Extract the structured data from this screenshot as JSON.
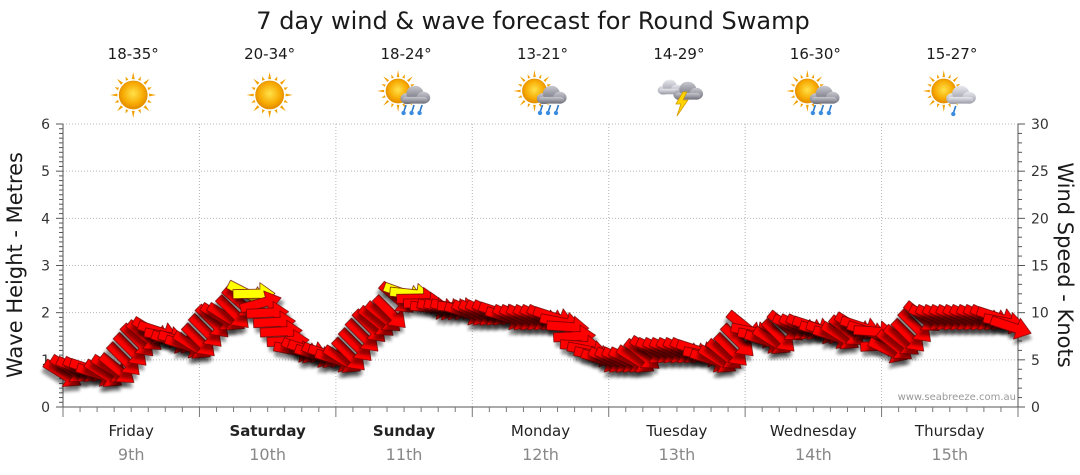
{
  "chart_data": {
    "type": "line",
    "title": "7 day wind & wave forecast for Round Swamp",
    "ylabel_left": "Wave Height - Metres",
    "ylabel_right": "Wind Speed - Knots",
    "ylim_left": [
      0,
      6
    ],
    "ylim_right": [
      0,
      30
    ],
    "yticks_left": [
      "0",
      "1",
      "2",
      "3",
      "4",
      "5",
      "6"
    ],
    "yticks_right": [
      "0",
      "5",
      "10",
      "15",
      "20",
      "25",
      "30"
    ],
    "grid": true,
    "credit": "www.seabreeze.com.au",
    "days": [
      {
        "day": "Friday",
        "date": "9th",
        "bold": false,
        "temp": "18-35°",
        "icon": "sunny-icon"
      },
      {
        "day": "Saturday",
        "date": "10th",
        "bold": true,
        "temp": "20-34°",
        "icon": "sunny-icon"
      },
      {
        "day": "Sunday",
        "date": "11th",
        "bold": true,
        "temp": "18-24°",
        "icon": "sun-rain-icon"
      },
      {
        "day": "Monday",
        "date": "12th",
        "bold": false,
        "temp": "13-21°",
        "icon": "sun-rain-icon"
      },
      {
        "day": "Tuesday",
        "date": "13th",
        "bold": false,
        "temp": "14-29°",
        "icon": "thunderstorm-icon"
      },
      {
        "day": "Wednesday",
        "date": "14th",
        "bold": false,
        "temp": "16-30°",
        "icon": "sun-rain-icon"
      },
      {
        "day": "Thursday",
        "date": "15th",
        "bold": false,
        "temp": "15-27°",
        "icon": "sun-showers-icon"
      }
    ],
    "series": [
      {
        "name": "Wind Speed",
        "x_days": [
          0.0,
          0.05,
          0.1,
          0.15,
          0.2,
          0.25,
          0.3,
          0.35,
          0.4,
          0.45,
          0.5,
          0.55,
          0.6,
          0.65,
          0.7,
          0.75,
          0.8,
          0.85,
          0.9,
          0.95,
          1.0,
          1.05,
          1.1,
          1.15,
          1.2,
          1.25,
          1.3,
          1.35,
          1.4,
          1.45,
          1.5,
          1.55,
          1.6,
          1.65,
          1.7,
          1.75,
          1.8,
          1.85,
          1.9,
          1.95,
          2.0,
          2.05,
          2.1,
          2.15,
          2.2,
          2.25,
          2.3,
          2.35,
          2.4,
          2.45,
          2.5,
          2.55,
          2.6,
          2.65,
          2.7,
          2.75,
          2.8,
          2.85,
          2.9,
          2.95,
          3.0,
          3.05,
          3.1,
          3.15,
          3.2,
          3.25,
          3.3,
          3.35,
          3.4,
          3.45,
          3.5,
          3.55,
          3.6,
          3.65,
          3.7,
          3.75,
          3.8,
          3.85,
          3.9,
          3.95,
          4.0,
          4.05,
          4.1,
          4.15,
          4.2,
          4.25,
          4.3,
          4.35,
          4.4,
          4.45,
          4.5,
          4.55,
          4.6,
          4.65,
          4.7,
          4.75,
          4.8,
          4.85,
          4.9,
          4.95,
          5.0,
          5.05,
          5.1,
          5.15,
          5.2,
          5.25,
          5.3,
          5.35,
          5.4,
          5.45,
          5.5,
          5.55,
          5.6,
          5.65,
          5.7,
          5.75,
          5.8,
          5.85,
          5.9,
          5.95,
          6.0,
          6.05,
          6.1,
          6.15,
          6.2,
          6.25,
          6.3,
          6.35,
          6.4,
          6.45,
          6.5,
          6.55,
          6.6,
          6.65,
          6.7,
          6.75,
          6.8,
          6.85,
          6.9,
          6.95
        ],
        "values": [
          3.5,
          4,
          4,
          4,
          4,
          3.5,
          3.5,
          4,
          4,
          5,
          6,
          7,
          7.5,
          8,
          8,
          7.5,
          7,
          7,
          6.5,
          6.5,
          7,
          8,
          9,
          9.5,
          9.5,
          10,
          11,
          12,
          12,
          11,
          10,
          9,
          8,
          7,
          6,
          6,
          6,
          5.5,
          5.5,
          5.5,
          5,
          5,
          5.5,
          6.5,
          7.5,
          8.5,
          9,
          9.5,
          10,
          11.5,
          12,
          12,
          11.5,
          11,
          10.5,
          10.5,
          10.5,
          10.5,
          10.5,
          10,
          10,
          10,
          10,
          10,
          10,
          9.5,
          9.5,
          9.5,
          9.5,
          9.5,
          9.5,
          9.5,
          9.5,
          9,
          8.5,
          7.5,
          6.5,
          6,
          5.5,
          5,
          5,
          5,
          5,
          5,
          5,
          5.5,
          6,
          6,
          6,
          6,
          6,
          6,
          6,
          6,
          5.5,
          5,
          5,
          5.5,
          6,
          7,
          8.5,
          8,
          7.5,
          7,
          7,
          7.5,
          8.5,
          8.5,
          8.5,
          8.5,
          8.5,
          8,
          8,
          7.5,
          7.5,
          8,
          8.5,
          8.5,
          8,
          8,
          6.5,
          6,
          6.5,
          7,
          7.5,
          8.5,
          9.5,
          9.5,
          9.5,
          9.5,
          9.5,
          9.5,
          9.5,
          9.5,
          9.5,
          9.5,
          9.5,
          9.5,
          9,
          8.5
        ],
        "colors": {
          "light": "#ffff00",
          "strong": "#ff0000"
        },
        "light_threshold": 12
      }
    ]
  }
}
